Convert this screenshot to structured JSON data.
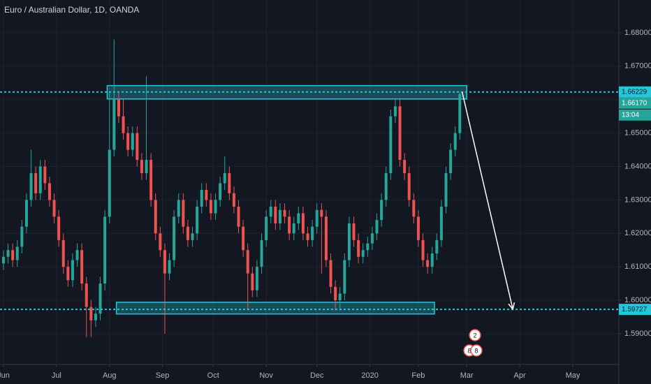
{
  "chart_data": {
    "type": "candlestick",
    "title": "Euro / Australian Dollar, 1D, OANDA",
    "up_color": "#26a69a",
    "down_color": "#ef5350",
    "grid": true,
    "xlim": [
      -1.5,
      267
    ],
    "xticks": [
      {
        "value": 0,
        "label": "Jun"
      },
      {
        "value": 23,
        "label": "Jul"
      },
      {
        "value": 46,
        "label": "Aug"
      },
      {
        "value": 69,
        "label": "Sep"
      },
      {
        "value": 91,
        "label": "Oct"
      },
      {
        "value": 114,
        "label": "Nov"
      },
      {
        "value": 136,
        "label": "Dec"
      },
      {
        "value": 159,
        "label": "2020"
      },
      {
        "value": 180,
        "label": "Feb"
      },
      {
        "value": 201,
        "label": "Mar"
      },
      {
        "value": 224,
        "label": "Apr"
      },
      {
        "value": 247,
        "label": "May"
      }
    ],
    "ylim": [
      1.5808,
      1.6898
    ],
    "yticks": [
      {
        "value": 1.59,
        "label": "1.59000"
      },
      {
        "value": 1.6,
        "label": "1.60000"
      },
      {
        "value": 1.61,
        "label": "1.61000"
      },
      {
        "value": 1.62,
        "label": "1.62000"
      },
      {
        "value": 1.63,
        "label": "1.63000"
      },
      {
        "value": 1.64,
        "label": "1.64000"
      },
      {
        "value": 1.65,
        "label": "1.65000"
      },
      {
        "value": 1.66,
        "label": "1.66000"
      },
      {
        "value": 1.67,
        "label": "1.67000"
      },
      {
        "value": 1.68,
        "label": "1.68000"
      }
    ],
    "candles": [
      [
        0,
        1.611,
        1.615,
        1.609,
        1.613
      ],
      [
        2,
        1.613,
        1.617,
        1.611,
        1.615
      ],
      [
        4,
        1.615,
        1.617,
        1.61,
        1.612
      ],
      [
        6,
        1.612,
        1.618,
        1.61,
        1.616
      ],
      [
        8,
        1.616,
        1.624,
        1.614,
        1.622
      ],
      [
        10,
        1.622,
        1.632,
        1.62,
        1.63
      ],
      [
        12,
        1.63,
        1.645,
        1.628,
        1.638
      ],
      [
        14,
        1.638,
        1.64,
        1.63,
        1.632
      ],
      [
        16,
        1.632,
        1.642,
        1.63,
        1.64
      ],
      [
        18,
        1.64,
        1.642,
        1.633,
        1.635
      ],
      [
        20,
        1.635,
        1.637,
        1.628,
        1.63
      ],
      [
        22,
        1.63,
        1.632,
        1.623,
        1.625
      ],
      [
        24,
        1.625,
        1.627,
        1.616,
        1.618
      ],
      [
        26,
        1.618,
        1.62,
        1.608,
        1.61
      ],
      [
        28,
        1.61,
        1.612,
        1.604,
        1.606
      ],
      [
        30,
        1.606,
        1.614,
        1.604,
        1.612
      ],
      [
        32,
        1.612,
        1.617,
        1.61,
        1.615
      ],
      [
        34,
        1.615,
        1.617,
        1.603,
        1.605
      ],
      [
        36,
        1.605,
        1.607,
        1.589,
        1.598
      ],
      [
        38,
        1.598,
        1.6,
        1.589,
        1.594
      ],
      [
        40,
        1.594,
        1.598,
        1.592,
        1.596
      ],
      [
        42,
        1.596,
        1.607,
        1.594,
        1.605
      ],
      [
        44,
        1.605,
        1.627,
        1.603,
        1.625
      ],
      [
        46,
        1.625,
        1.662,
        1.623,
        1.645
      ],
      [
        48,
        1.645,
        1.678,
        1.643,
        1.66
      ],
      [
        50,
        1.66,
        1.662,
        1.653,
        1.655
      ],
      [
        52,
        1.655,
        1.66,
        1.648,
        1.65
      ],
      [
        54,
        1.65,
        1.652,
        1.643,
        1.645
      ],
      [
        56,
        1.645,
        1.652,
        1.643,
        1.65
      ],
      [
        58,
        1.65,
        1.652,
        1.64,
        1.642
      ],
      [
        60,
        1.642,
        1.644,
        1.636,
        1.638
      ],
      [
        62,
        1.638,
        1.667,
        1.636,
        1.642
      ],
      [
        64,
        1.642,
        1.644,
        1.628,
        1.63
      ],
      [
        66,
        1.63,
        1.632,
        1.618,
        1.62
      ],
      [
        68,
        1.62,
        1.622,
        1.613,
        1.615
      ],
      [
        70,
        1.615,
        1.617,
        1.59,
        1.608
      ],
      [
        72,
        1.608,
        1.614,
        1.606,
        1.612
      ],
      [
        74,
        1.612,
        1.627,
        1.61,
        1.625
      ],
      [
        76,
        1.625,
        1.632,
        1.623,
        1.63
      ],
      [
        78,
        1.63,
        1.632,
        1.62,
        1.622
      ],
      [
        80,
        1.622,
        1.624,
        1.616,
        1.618
      ],
      [
        82,
        1.618,
        1.622,
        1.616,
        1.62
      ],
      [
        84,
        1.62,
        1.63,
        1.618,
        1.628
      ],
      [
        86,
        1.628,
        1.635,
        1.626,
        1.633
      ],
      [
        88,
        1.633,
        1.635,
        1.628,
        1.63
      ],
      [
        90,
        1.63,
        1.632,
        1.624,
        1.626
      ],
      [
        92,
        1.626,
        1.632,
        1.624,
        1.63
      ],
      [
        94,
        1.63,
        1.637,
        1.628,
        1.635
      ],
      [
        96,
        1.635,
        1.643,
        1.633,
        1.638
      ],
      [
        98,
        1.638,
        1.64,
        1.63,
        1.632
      ],
      [
        100,
        1.632,
        1.634,
        1.626,
        1.628
      ],
      [
        102,
        1.628,
        1.63,
        1.62,
        1.622
      ],
      [
        104,
        1.622,
        1.624,
        1.613,
        1.615
      ],
      [
        106,
        1.615,
        1.617,
        1.597,
        1.608
      ],
      [
        108,
        1.608,
        1.61,
        1.601,
        1.603
      ],
      [
        110,
        1.603,
        1.612,
        1.601,
        1.61
      ],
      [
        112,
        1.61,
        1.62,
        1.608,
        1.618
      ],
      [
        114,
        1.618,
        1.627,
        1.616,
        1.625
      ],
      [
        116,
        1.625,
        1.63,
        1.623,
        1.628
      ],
      [
        118,
        1.628,
        1.63,
        1.621,
        1.623
      ],
      [
        120,
        1.623,
        1.629,
        1.621,
        1.627
      ],
      [
        122,
        1.627,
        1.629,
        1.623,
        1.625
      ],
      [
        124,
        1.625,
        1.627,
        1.618,
        1.62
      ],
      [
        126,
        1.62,
        1.625,
        1.618,
        1.623
      ],
      [
        128,
        1.623,
        1.628,
        1.621,
        1.626
      ],
      [
        130,
        1.626,
        1.628,
        1.618,
        1.62
      ],
      [
        132,
        1.62,
        1.622,
        1.616,
        1.618
      ],
      [
        134,
        1.618,
        1.624,
        1.616,
        1.622
      ],
      [
        136,
        1.622,
        1.629,
        1.62,
        1.627
      ],
      [
        138,
        1.627,
        1.629,
        1.608,
        1.625
      ],
      [
        140,
        1.625,
        1.627,
        1.61,
        1.612
      ],
      [
        142,
        1.612,
        1.614,
        1.602,
        1.604
      ],
      [
        144,
        1.604,
        1.606,
        1.597,
        1.6
      ],
      [
        146,
        1.6,
        1.604,
        1.597,
        1.602
      ],
      [
        148,
        1.602,
        1.614,
        1.6,
        1.612
      ],
      [
        150,
        1.612,
        1.625,
        1.61,
        1.623
      ],
      [
        152,
        1.623,
        1.625,
        1.616,
        1.618
      ],
      [
        154,
        1.618,
        1.62,
        1.611,
        1.613
      ],
      [
        156,
        1.613,
        1.617,
        1.611,
        1.615
      ],
      [
        158,
        1.615,
        1.619,
        1.613,
        1.617
      ],
      [
        160,
        1.617,
        1.622,
        1.615,
        1.62
      ],
      [
        162,
        1.62,
        1.626,
        1.618,
        1.624
      ],
      [
        164,
        1.624,
        1.632,
        1.622,
        1.63
      ],
      [
        166,
        1.63,
        1.64,
        1.628,
        1.638
      ],
      [
        168,
        1.638,
        1.657,
        1.636,
        1.655
      ],
      [
        170,
        1.655,
        1.66,
        1.653,
        1.658
      ],
      [
        172,
        1.658,
        1.66,
        1.64,
        1.642
      ],
      [
        174,
        1.642,
        1.644,
        1.636,
        1.638
      ],
      [
        176,
        1.638,
        1.64,
        1.628,
        1.63
      ],
      [
        178,
        1.63,
        1.632,
        1.623,
        1.625
      ],
      [
        180,
        1.625,
        1.627,
        1.616,
        1.618
      ],
      [
        182,
        1.618,
        1.62,
        1.61,
        1.612
      ],
      [
        184,
        1.612,
        1.614,
        1.608,
        1.61
      ],
      [
        186,
        1.61,
        1.616,
        1.608,
        1.614
      ],
      [
        188,
        1.614,
        1.62,
        1.612,
        1.618
      ],
      [
        190,
        1.618,
        1.63,
        1.616,
        1.628
      ],
      [
        192,
        1.628,
        1.64,
        1.626,
        1.638
      ],
      [
        194,
        1.638,
        1.647,
        1.636,
        1.645
      ],
      [
        196,
        1.645,
        1.652,
        1.643,
        1.65
      ],
      [
        198,
        1.65,
        1.6623,
        1.648,
        1.6617
      ]
    ],
    "levels": [
      {
        "value": 1.66229,
        "label": "1.66229"
      },
      {
        "value": 1.59727,
        "label": "1.59727"
      }
    ],
    "level_color": "#26c6da",
    "zones": [
      {
        "x": [
          45,
          201
        ],
        "y": [
          1.6602,
          1.6642
        ]
      },
      {
        "x": [
          49,
          187
        ],
        "y": [
          1.5959,
          1.5994
        ]
      }
    ],
    "arrow": {
      "x": [
        199,
        221
      ],
      "y": [
        1.6623,
        1.5973
      ]
    },
    "last_price": {
      "value": 1.6617,
      "label": "1.66170"
    },
    "countdown": "13:04",
    "events": [
      "2",
      "8",
      "8"
    ]
  }
}
